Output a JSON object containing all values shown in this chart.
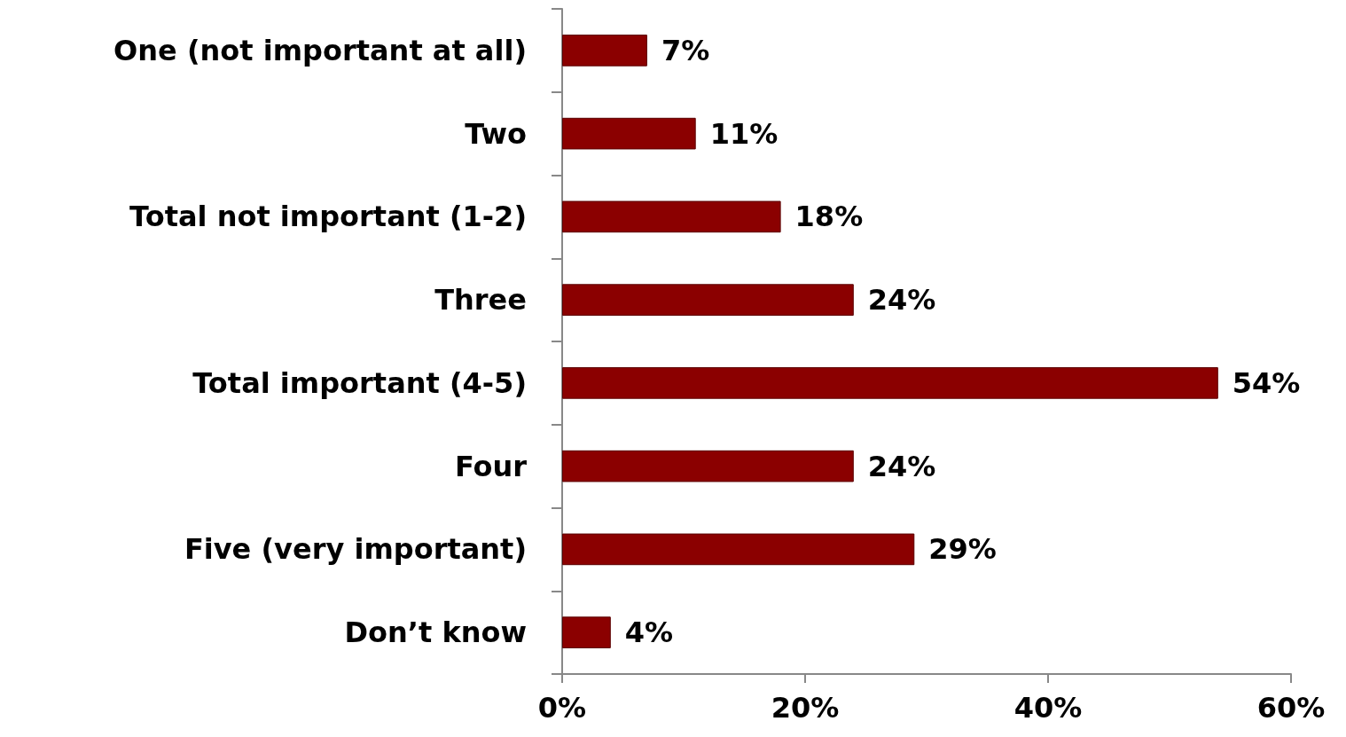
{
  "chart_data": {
    "type": "bar",
    "orientation": "horizontal",
    "categories": [
      "One (not important at all)",
      "Two",
      "Total not important (1-2)",
      "Three",
      "Total important (4-5)",
      "Four",
      "Five (very important)",
      "Don’t know"
    ],
    "values": [
      7,
      11,
      18,
      24,
      54,
      24,
      29,
      4
    ],
    "value_labels": [
      "7%",
      "11%",
      "18%",
      "24%",
      "54%",
      "24%",
      "29%",
      "4%"
    ],
    "color": "#8b0000",
    "xlim": [
      0,
      60
    ],
    "xticks": [
      {
        "value": 0,
        "label": "0%"
      },
      {
        "value": 20,
        "label": "20%"
      },
      {
        "value": 40,
        "label": "40%"
      },
      {
        "value": 60,
        "label": "60%"
      }
    ],
    "grid": false
  }
}
